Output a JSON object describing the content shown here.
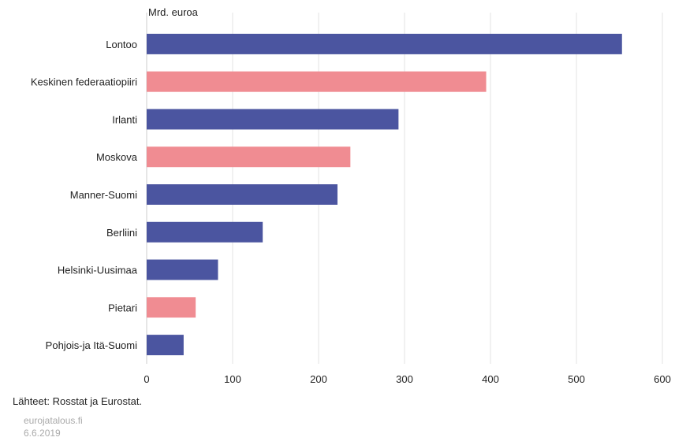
{
  "chart_data": {
    "type": "bar",
    "orientation": "horizontal",
    "unit_label": "Mrd. euroa",
    "categories": [
      "Lontoo",
      "Keskinen federaatiopiiri",
      "Irlanti",
      "Moskova",
      "Manner-Suomi",
      "Berliini",
      "Helsinki-Uusimaa",
      "Pietari",
      "Pohjois-ja Itä-Suomi"
    ],
    "values": [
      553,
      395,
      293,
      237,
      222,
      135,
      83,
      57,
      43
    ],
    "bar_colors": [
      "#4b55a0",
      "#f08c92",
      "#4b55a0",
      "#f08c92",
      "#4b55a0",
      "#4b55a0",
      "#4b55a0",
      "#f08c92",
      "#4b55a0"
    ],
    "xlim": [
      0,
      600
    ],
    "xticks": [
      0,
      100,
      200,
      300,
      400,
      500,
      600
    ],
    "grid": true
  },
  "footer": {
    "source": "Lähteet: Rosstat ja Eurostat.",
    "site": "eurojatalous.fi",
    "date": "6.6.2019"
  }
}
